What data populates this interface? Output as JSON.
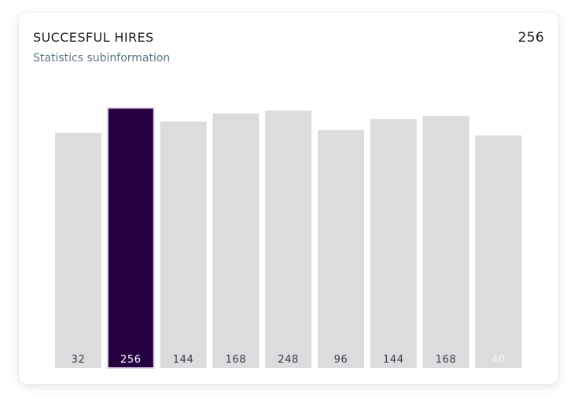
{
  "card": {
    "title": "SUCCESFUL HIRES",
    "subtitle": "Statistics subinformation",
    "total": "256"
  },
  "colors": {
    "bar": "#dcdcde",
    "bar_active": "#250041",
    "label": "#3c3c46",
    "label_active": "#ffffff",
    "label_faded": "#f4f4f8"
  },
  "chart_data": {
    "type": "bar",
    "categories": [
      "32",
      "256",
      "144",
      "168",
      "248",
      "96",
      "144",
      "168",
      "40"
    ],
    "values": [
      32,
      256,
      144,
      168,
      248,
      96,
      144,
      168,
      40
    ],
    "highlighted_index": 1,
    "faded_label_index": 8,
    "bar_heights_relative": [
      0.85,
      0.94,
      0.89,
      0.92,
      0.93,
      0.86,
      0.9,
      0.91,
      0.84
    ]
  }
}
